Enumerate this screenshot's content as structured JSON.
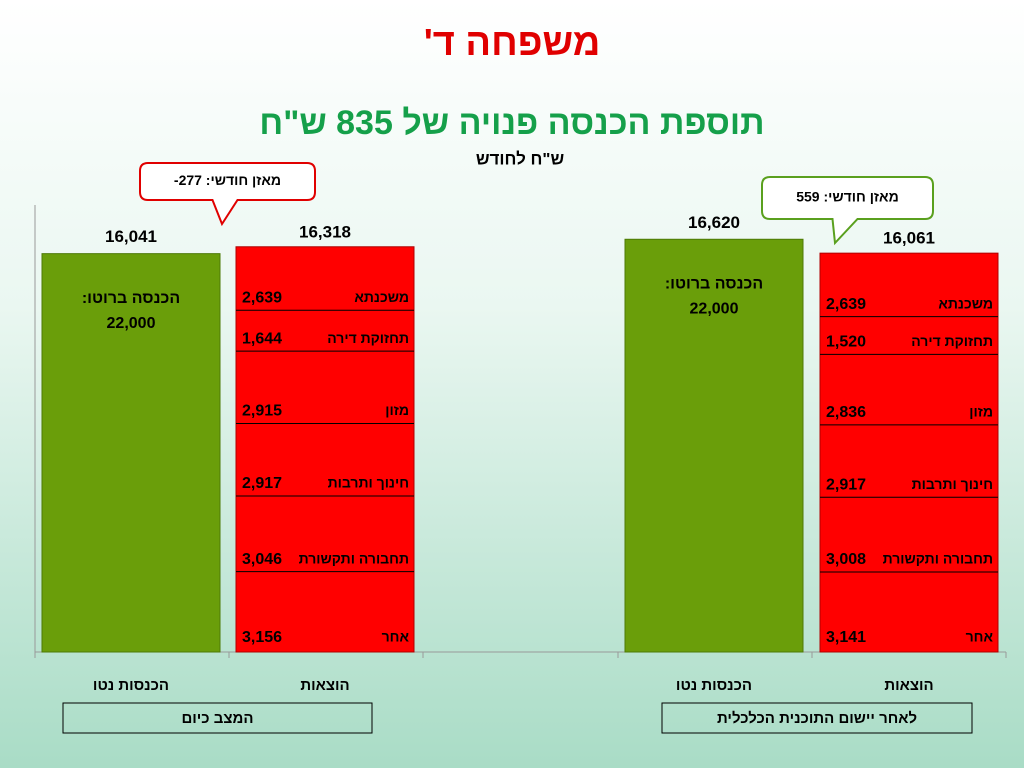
{
  "chart_data": {
    "type": "bar",
    "title": "משפחה ד'",
    "subtitle": "תוספת הכנסה פנויה של 835 ש\"ח",
    "y_label": "ש\"ח לחודש",
    "ylim": [
      0,
      18000
    ],
    "income_color": "#6a9e0a",
    "expense_color": "#ff0000",
    "groups": [
      {
        "name": "המצב כיום",
        "balance_label": "מאזן חודשי: 277-",
        "categories": [
          "הכנסות נטו",
          "הוצאות"
        ],
        "values": [
          16041,
          16318
        ],
        "value_labels": [
          "16,041",
          "16,318"
        ],
        "gross_label": "הכנסה ברוטו:",
        "gross": {
          "value": 22000,
          "label": "22,000"
        },
        "expenses": [
          {
            "name": "משכנתא",
            "value": 2639,
            "label": "2,639"
          },
          {
            "name": "תחזוקת דירה",
            "value": 1644,
            "label": "1,644"
          },
          {
            "name": "מזון",
            "value": 2915,
            "label": "2,915"
          },
          {
            "name": "חינוך ותרבות",
            "value": 2917,
            "label": "2,917"
          },
          {
            "name": "תחבורה ותקשורת",
            "value": 3046,
            "label": "3,046"
          },
          {
            "name": "אחר",
            "value": 3156,
            "label": "3,156"
          }
        ]
      },
      {
        "name": "לאחר יישום התוכנית הכלכלית",
        "balance_label": "מאזן חודשי: 559",
        "categories": [
          "הכנסות נטו",
          "הוצאות"
        ],
        "values": [
          16620,
          16061
        ],
        "value_labels": [
          "16,620",
          "16,061"
        ],
        "gross_label": "הכנסה ברוטו:",
        "gross": {
          "value": 22000,
          "label": "22,000"
        },
        "expenses": [
          {
            "name": "משכנתא",
            "value": 2639,
            "label": "2,639"
          },
          {
            "name": "תחזוקת דירה",
            "value": 1520,
            "label": "1,520"
          },
          {
            "name": "מזון",
            "value": 2836,
            "label": "2,836"
          },
          {
            "name": "חינוך ותרבות",
            "value": 2917,
            "label": "2,917"
          },
          {
            "name": "תחבורה ותקשורת",
            "value": 3008,
            "label": "3,008"
          },
          {
            "name": "אחר",
            "value": 3141,
            "label": "3,141"
          }
        ]
      }
    ]
  }
}
